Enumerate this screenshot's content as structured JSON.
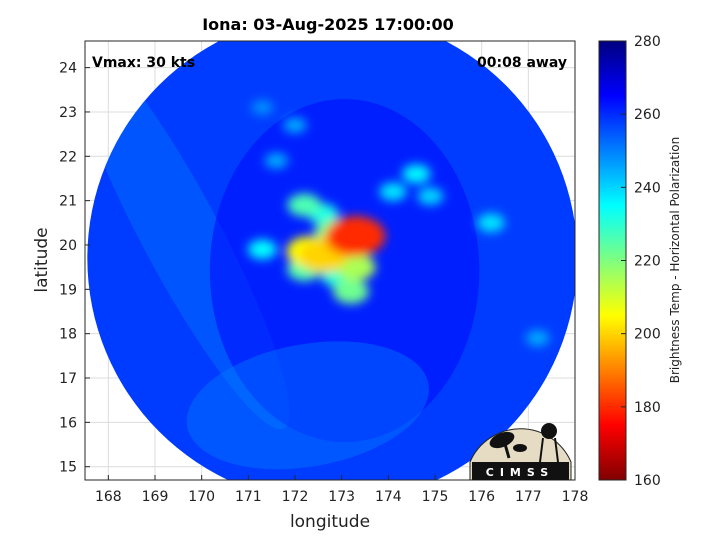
{
  "chart_data": {
    "type": "heatmap",
    "title": "Iona: 03-Aug-2025 17:00:00",
    "xlabel": "longitude",
    "ylabel": "latitude",
    "xlim": [
      167.5,
      178
    ],
    "ylim": [
      14.7,
      24.6
    ],
    "xticks": [
      168,
      169,
      170,
      171,
      172,
      173,
      174,
      175,
      176,
      177,
      178
    ],
    "yticks": [
      15,
      16,
      17,
      18,
      19,
      20,
      21,
      22,
      23,
      24
    ],
    "grid": true,
    "annotations": {
      "left": "Vmax: 30 kts",
      "right": "00:08 away"
    },
    "colorbar": {
      "label": "Brightness Temp - Horizontal Polarization",
      "range": [
        160,
        280
      ],
      "ticks": [
        160,
        180,
        200,
        220,
        240,
        260,
        280
      ],
      "colormap": "jet"
    },
    "swath": {
      "center": [
        172.8,
        19.7
      ],
      "radius_deg_lon": 5.25,
      "background_tb": 258
    },
    "features": [
      {
        "lon": 172.0,
        "lat": 22.7,
        "tb": 245
      },
      {
        "lon": 171.3,
        "lat": 23.1,
        "tb": 248
      },
      {
        "lon": 171.6,
        "lat": 21.9,
        "tb": 245
      },
      {
        "lon": 172.2,
        "lat": 20.9,
        "tb": 226
      },
      {
        "lon": 172.6,
        "lat": 20.7,
        "tb": 232
      },
      {
        "lon": 172.8,
        "lat": 20.3,
        "tb": 222
      },
      {
        "lon": 172.3,
        "lat": 19.85,
        "tb": 205
      },
      {
        "lon": 172.6,
        "lat": 19.75,
        "tb": 200
      },
      {
        "lon": 173.1,
        "lat": 20.1,
        "tb": 198
      },
      {
        "lon": 173.3,
        "lat": 20.2,
        "tb": 180
      },
      {
        "lon": 173.3,
        "lat": 19.5,
        "tb": 215
      },
      {
        "lon": 173.2,
        "lat": 18.95,
        "tb": 222
      },
      {
        "lon": 172.9,
        "lat": 19.3,
        "tb": 230
      },
      {
        "lon": 172.2,
        "lat": 19.45,
        "tb": 225
      },
      {
        "lon": 171.3,
        "lat": 19.9,
        "tb": 235
      },
      {
        "lon": 174.6,
        "lat": 21.6,
        "tb": 236
      },
      {
        "lon": 174.1,
        "lat": 21.2,
        "tb": 238
      },
      {
        "lon": 174.9,
        "lat": 21.1,
        "tb": 240
      },
      {
        "lon": 176.2,
        "lat": 20.5,
        "tb": 238
      },
      {
        "lon": 177.2,
        "lat": 17.9,
        "tb": 245
      }
    ]
  },
  "logo": {
    "text": "CIMSS"
  }
}
